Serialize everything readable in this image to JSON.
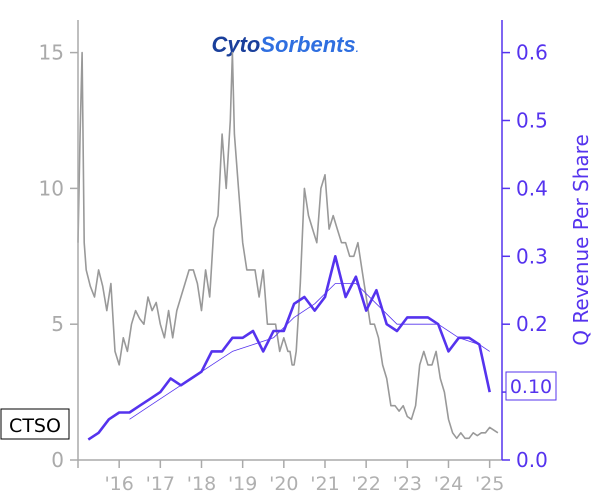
{
  "chart_data": {
    "type": "line",
    "logo": {
      "part1": "Cyto",
      "part2": "Sorbents",
      "suffix": ".",
      "color1": "#1a3f9b",
      "color2": "#2f6fe0"
    },
    "ticker": "CTSO",
    "ylabel_right": "Q Revenue Per Share",
    "last_value_label": "0.10",
    "x_ticks": [
      "'16",
      "'17",
      "'18",
      "'19",
      "'20",
      "'21",
      "'22",
      "'23",
      "'24",
      "'25"
    ],
    "x_tick_years": [
      2016,
      2017,
      2018,
      2019,
      2020,
      2021,
      2022,
      2023,
      2024,
      2025
    ],
    "xlim": [
      2015.0,
      2025.3
    ],
    "y_left_ticks": [
      "0",
      "5",
      "10",
      "15"
    ],
    "y_left_values": [
      0,
      5,
      10,
      15
    ],
    "y_left_lim": [
      0,
      16.2
    ],
    "y_right_ticks": [
      "0.0",
      "0.1",
      "0.2",
      "0.3",
      "0.4",
      "0.5",
      "0.6"
    ],
    "y_right_values": [
      0.0,
      0.1,
      0.2,
      0.3,
      0.4,
      0.5,
      0.6
    ],
    "y_right_lim": [
      0,
      0.648
    ],
    "colors": {
      "price": "#999999",
      "revenue": "#5533ee",
      "left_axis": "#aaaaaa",
      "right_axis": "#5533ee"
    },
    "series": [
      {
        "name": "Price",
        "axis": "left",
        "x": [
          2015.0,
          2015.05,
          2015.1,
          2015.15,
          2015.2,
          2015.3,
          2015.4,
          2015.5,
          2015.6,
          2015.7,
          2015.8,
          2015.9,
          2016.0,
          2016.1,
          2016.2,
          2016.3,
          2016.4,
          2016.5,
          2016.6,
          2016.7,
          2016.8,
          2016.9,
          2017.0,
          2017.1,
          2017.2,
          2017.3,
          2017.4,
          2017.5,
          2017.6,
          2017.7,
          2017.8,
          2017.9,
          2018.0,
          2018.1,
          2018.2,
          2018.3,
          2018.4,
          2018.5,
          2018.55,
          2018.6,
          2018.7,
          2018.75,
          2018.8,
          2018.9,
          2019.0,
          2019.1,
          2019.2,
          2019.3,
          2019.4,
          2019.5,
          2019.6,
          2019.7,
          2019.8,
          2019.9,
          2020.0,
          2020.1,
          2020.15,
          2020.2,
          2020.25,
          2020.3,
          2020.4,
          2020.5,
          2020.6,
          2020.7,
          2020.8,
          2020.9,
          2021.0,
          2021.1,
          2021.2,
          2021.3,
          2021.4,
          2021.5,
          2021.6,
          2021.7,
          2021.8,
          2021.9,
          2022.0,
          2022.1,
          2022.2,
          2022.3,
          2022.4,
          2022.5,
          2022.6,
          2022.7,
          2022.8,
          2022.9,
          2023.0,
          2023.1,
          2023.2,
          2023.3,
          2023.4,
          2023.5,
          2023.6,
          2023.7,
          2023.8,
          2023.9,
          2024.0,
          2024.1,
          2024.2,
          2024.3,
          2024.4,
          2024.5,
          2024.6,
          2024.7,
          2024.8,
          2024.9,
          2025.0,
          2025.2
        ],
        "values": [
          8.0,
          12.0,
          15.0,
          8.0,
          7.0,
          6.4,
          6.0,
          7.0,
          6.4,
          5.5,
          6.5,
          4.0,
          3.5,
          4.5,
          4.0,
          5.0,
          5.5,
          5.2,
          5.0,
          6.0,
          5.5,
          5.8,
          5.0,
          4.5,
          5.5,
          4.5,
          5.5,
          6.0,
          6.5,
          7.0,
          7.0,
          6.5,
          5.5,
          7.0,
          6.0,
          8.5,
          9.0,
          12.0,
          11.0,
          10.0,
          12.5,
          15.0,
          12.0,
          10.0,
          8.0,
          7.0,
          7.0,
          7.0,
          6.0,
          7.0,
          5.0,
          5.0,
          5.0,
          4.0,
          4.5,
          4.0,
          4.0,
          3.5,
          3.5,
          4.0,
          6.5,
          10.0,
          9.0,
          8.5,
          8.0,
          10.0,
          10.5,
          8.5,
          9.0,
          8.5,
          8.0,
          8.0,
          7.5,
          7.5,
          8.0,
          7.0,
          6.0,
          5.0,
          5.0,
          4.5,
          3.5,
          3.0,
          2.0,
          2.0,
          1.8,
          2.0,
          1.6,
          1.5,
          2.0,
          3.5,
          4.0,
          3.5,
          3.5,
          4.0,
          3.0,
          2.5,
          1.5,
          1.0,
          0.8,
          1.0,
          0.8,
          0.8,
          1.0,
          0.9,
          1.0,
          1.0,
          1.2,
          1.0
        ]
      },
      {
        "name": "Q Revenue Per Share",
        "axis": "right",
        "x": [
          2015.25,
          2015.5,
          2015.75,
          2016.0,
          2016.25,
          2016.5,
          2016.75,
          2017.0,
          2017.25,
          2017.5,
          2017.75,
          2018.0,
          2018.25,
          2018.5,
          2018.75,
          2019.0,
          2019.25,
          2019.5,
          2019.75,
          2020.0,
          2020.25,
          2020.5,
          2020.75,
          2021.0,
          2021.25,
          2021.5,
          2021.75,
          2022.0,
          2022.25,
          2022.5,
          2022.75,
          2023.0,
          2023.25,
          2023.5,
          2023.75,
          2024.0,
          2024.25,
          2024.5,
          2024.75,
          2025.0
        ],
        "values": [
          0.03,
          0.04,
          0.06,
          0.07,
          0.07,
          0.08,
          0.09,
          0.1,
          0.12,
          0.11,
          0.12,
          0.13,
          0.16,
          0.16,
          0.18,
          0.18,
          0.19,
          0.16,
          0.19,
          0.19,
          0.23,
          0.24,
          0.22,
          0.24,
          0.3,
          0.24,
          0.27,
          0.22,
          0.25,
          0.2,
          0.19,
          0.21,
          0.21,
          0.21,
          0.2,
          0.16,
          0.18,
          0.18,
          0.17,
          0.1
        ]
      },
      {
        "name": "Trend",
        "axis": "right",
        "x": [
          2016.25,
          2016.75,
          2017.25,
          2017.75,
          2018.25,
          2018.75,
          2019.25,
          2019.75,
          2020.25,
          2020.75,
          2021.25,
          2021.75,
          2022.25,
          2022.75,
          2023.25,
          2023.75,
          2024.25,
          2024.75,
          2025.0
        ],
        "values": [
          0.06,
          0.08,
          0.1,
          0.12,
          0.14,
          0.16,
          0.17,
          0.18,
          0.21,
          0.23,
          0.26,
          0.26,
          0.23,
          0.2,
          0.2,
          0.2,
          0.18,
          0.17,
          0.16
        ]
      }
    ]
  }
}
